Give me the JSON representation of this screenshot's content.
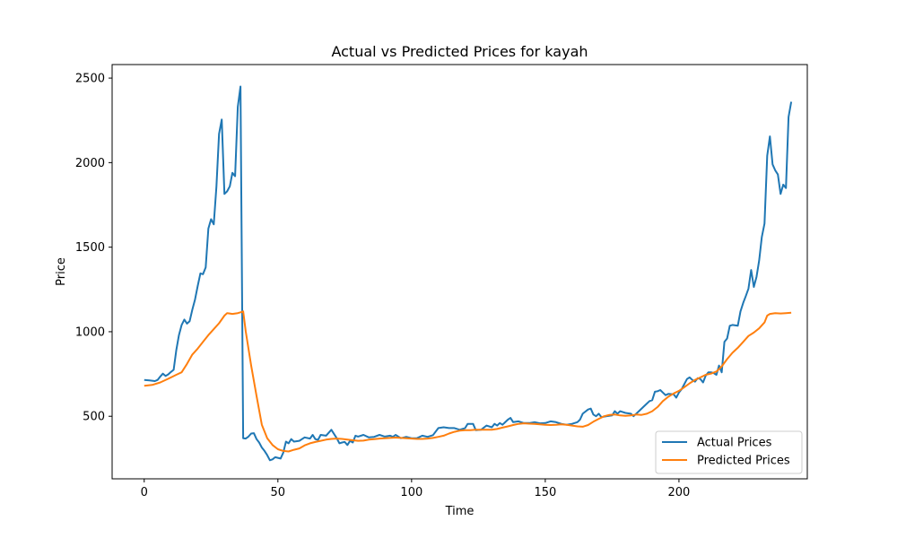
{
  "chart_data": {
    "type": "line",
    "title": "Actual vs Predicted Prices for kayah",
    "xlabel": "Time",
    "ylabel": "Price",
    "xlim": [
      -12,
      248
    ],
    "ylim": [
      130,
      2580
    ],
    "xticks": [
      0,
      50,
      100,
      150,
      200
    ],
    "yticks": [
      500,
      1000,
      1500,
      2000,
      2500
    ],
    "grid": false,
    "legend_position": "lower-right",
    "series": [
      {
        "name": "Actual Prices",
        "color": "#1f77b4",
        "points": [
          [
            0,
            715
          ],
          [
            2,
            712
          ],
          [
            4,
            708
          ],
          [
            5,
            715
          ],
          [
            6,
            735
          ],
          [
            7,
            752
          ],
          [
            8,
            738
          ],
          [
            9,
            748
          ],
          [
            10,
            762
          ],
          [
            11,
            775
          ],
          [
            12,
            890
          ],
          [
            13,
            980
          ],
          [
            14,
            1040
          ],
          [
            15,
            1072
          ],
          [
            16,
            1048
          ],
          [
            17,
            1062
          ],
          [
            18,
            1130
          ],
          [
            19,
            1190
          ],
          [
            20,
            1270
          ],
          [
            21,
            1345
          ],
          [
            22,
            1340
          ],
          [
            23,
            1380
          ],
          [
            24,
            1610
          ],
          [
            25,
            1665
          ],
          [
            26,
            1635
          ],
          [
            27,
            1860
          ],
          [
            28,
            2170
          ],
          [
            29,
            2255
          ],
          [
            30,
            1815
          ],
          [
            31,
            1830
          ],
          [
            32,
            1860
          ],
          [
            33,
            1940
          ],
          [
            34,
            1920
          ],
          [
            35,
            2330
          ],
          [
            36,
            2450
          ],
          [
            37,
            370
          ],
          [
            38,
            368
          ],
          [
            39,
            380
          ],
          [
            40,
            398
          ],
          [
            41,
            400
          ],
          [
            42,
            365
          ],
          [
            43,
            345
          ],
          [
            44,
            315
          ],
          [
            45,
            295
          ],
          [
            46,
            270
          ],
          [
            47,
            240
          ],
          [
            48,
            245
          ],
          [
            49,
            258
          ],
          [
            51,
            250
          ],
          [
            52,
            285
          ],
          [
            53,
            350
          ],
          [
            54,
            340
          ],
          [
            55,
            365
          ],
          [
            56,
            350
          ],
          [
            58,
            355
          ],
          [
            60,
            375
          ],
          [
            62,
            368
          ],
          [
            63,
            390
          ],
          [
            64,
            365
          ],
          [
            65,
            360
          ],
          [
            66,
            390
          ],
          [
            68,
            385
          ],
          [
            70,
            420
          ],
          [
            72,
            370
          ],
          [
            73,
            340
          ],
          [
            74,
            345
          ],
          [
            75,
            348
          ],
          [
            76,
            330
          ],
          [
            77,
            355
          ],
          [
            78,
            345
          ],
          [
            79,
            385
          ],
          [
            80,
            380
          ],
          [
            82,
            390
          ],
          [
            84,
            375
          ],
          [
            86,
            378
          ],
          [
            88,
            390
          ],
          [
            90,
            380
          ],
          [
            92,
            385
          ],
          [
            93,
            378
          ],
          [
            94,
            390
          ],
          [
            96,
            370
          ],
          [
            98,
            378
          ],
          [
            100,
            370
          ],
          [
            102,
            370
          ],
          [
            104,
            385
          ],
          [
            106,
            378
          ],
          [
            108,
            388
          ],
          [
            110,
            430
          ],
          [
            112,
            435
          ],
          [
            114,
            430
          ],
          [
            116,
            430
          ],
          [
            118,
            420
          ],
          [
            120,
            430
          ],
          [
            121,
            455
          ],
          [
            123,
            455
          ],
          [
            124,
            418
          ],
          [
            126,
            420
          ],
          [
            128,
            445
          ],
          [
            130,
            435
          ],
          [
            131,
            455
          ],
          [
            132,
            445
          ],
          [
            133,
            460
          ],
          [
            134,
            450
          ],
          [
            136,
            480
          ],
          [
            137,
            490
          ],
          [
            138,
            465
          ],
          [
            140,
            470
          ],
          [
            142,
            460
          ],
          [
            144,
            460
          ],
          [
            146,
            465
          ],
          [
            148,
            458
          ],
          [
            150,
            460
          ],
          [
            152,
            470
          ],
          [
            154,
            465
          ],
          [
            156,
            455
          ],
          [
            158,
            450
          ],
          [
            160,
            455
          ],
          [
            162,
            465
          ],
          [
            163,
            480
          ],
          [
            164,
            515
          ],
          [
            166,
            540
          ],
          [
            167,
            545
          ],
          [
            168,
            510
          ],
          [
            169,
            500
          ],
          [
            170,
            515
          ],
          [
            171,
            495
          ],
          [
            173,
            500
          ],
          [
            175,
            505
          ],
          [
            176,
            530
          ],
          [
            177,
            515
          ],
          [
            178,
            530
          ],
          [
            180,
            520
          ],
          [
            182,
            515
          ],
          [
            183,
            500
          ],
          [
            185,
            530
          ],
          [
            187,
            560
          ],
          [
            189,
            590
          ],
          [
            190,
            595
          ],
          [
            191,
            645
          ],
          [
            192,
            648
          ],
          [
            193,
            655
          ],
          [
            194,
            640
          ],
          [
            195,
            625
          ],
          [
            196,
            632
          ],
          [
            198,
            630
          ],
          [
            199,
            610
          ],
          [
            200,
            640
          ],
          [
            201,
            660
          ],
          [
            202,
            690
          ],
          [
            203,
            720
          ],
          [
            204,
            730
          ],
          [
            205,
            715
          ],
          [
            206,
            705
          ],
          [
            207,
            725
          ],
          [
            208,
            720
          ],
          [
            209,
            700
          ],
          [
            210,
            740
          ],
          [
            211,
            760
          ],
          [
            212,
            760
          ],
          [
            213,
            755
          ],
          [
            214,
            745
          ],
          [
            215,
            800
          ],
          [
            216,
            760
          ],
          [
            217,
            940
          ],
          [
            218,
            960
          ],
          [
            219,
            1035
          ],
          [
            220,
            1040
          ],
          [
            222,
            1035
          ],
          [
            223,
            1120
          ],
          [
            224,
            1170
          ],
          [
            225,
            1210
          ],
          [
            226,
            1255
          ],
          [
            227,
            1365
          ],
          [
            228,
            1265
          ],
          [
            229,
            1325
          ],
          [
            230,
            1420
          ],
          [
            231,
            1560
          ],
          [
            232,
            1640
          ],
          [
            233,
            2040
          ],
          [
            234,
            2155
          ],
          [
            235,
            1990
          ],
          [
            236,
            1955
          ],
          [
            237,
            1930
          ],
          [
            238,
            1815
          ],
          [
            239,
            1870
          ],
          [
            240,
            1850
          ],
          [
            241,
            2270
          ],
          [
            242,
            2360
          ]
        ]
      },
      {
        "name": "Predicted Prices",
        "color": "#ff7f0e",
        "points": [
          [
            0,
            680
          ],
          [
            3,
            685
          ],
          [
            6,
            700
          ],
          [
            9,
            722
          ],
          [
            12,
            745
          ],
          [
            14,
            760
          ],
          [
            16,
            810
          ],
          [
            18,
            865
          ],
          [
            20,
            900
          ],
          [
            22,
            940
          ],
          [
            24,
            980
          ],
          [
            26,
            1015
          ],
          [
            28,
            1050
          ],
          [
            30,
            1095
          ],
          [
            31,
            1110
          ],
          [
            33,
            1105
          ],
          [
            35,
            1110
          ],
          [
            36,
            1115
          ],
          [
            37,
            1120
          ],
          [
            38,
            1000
          ],
          [
            40,
            800
          ],
          [
            42,
            620
          ],
          [
            44,
            450
          ],
          [
            46,
            370
          ],
          [
            48,
            330
          ],
          [
            50,
            305
          ],
          [
            52,
            295
          ],
          [
            54,
            292
          ],
          [
            56,
            302
          ],
          [
            58,
            310
          ],
          [
            60,
            328
          ],
          [
            62,
            340
          ],
          [
            64,
            348
          ],
          [
            66,
            355
          ],
          [
            68,
            362
          ],
          [
            70,
            366
          ],
          [
            72,
            368
          ],
          [
            74,
            366
          ],
          [
            76,
            362
          ],
          [
            78,
            358
          ],
          [
            80,
            355
          ],
          [
            82,
            356
          ],
          [
            84,
            362
          ],
          [
            86,
            365
          ],
          [
            88,
            368
          ],
          [
            90,
            370
          ],
          [
            92,
            372
          ],
          [
            94,
            374
          ],
          [
            96,
            372
          ],
          [
            98,
            370
          ],
          [
            100,
            368
          ],
          [
            102,
            366
          ],
          [
            104,
            366
          ],
          [
            106,
            368
          ],
          [
            108,
            372
          ],
          [
            110,
            378
          ],
          [
            112,
            385
          ],
          [
            114,
            398
          ],
          [
            116,
            408
          ],
          [
            118,
            415
          ],
          [
            120,
            418
          ],
          [
            122,
            418
          ],
          [
            124,
            420
          ],
          [
            126,
            420
          ],
          [
            128,
            420
          ],
          [
            130,
            420
          ],
          [
            132,
            425
          ],
          [
            134,
            433
          ],
          [
            136,
            440
          ],
          [
            138,
            448
          ],
          [
            140,
            455
          ],
          [
            142,
            458
          ],
          [
            144,
            456
          ],
          [
            146,
            455
          ],
          [
            148,
            452
          ],
          [
            150,
            450
          ],
          [
            152,
            448
          ],
          [
            154,
            449
          ],
          [
            156,
            452
          ],
          [
            158,
            450
          ],
          [
            160,
            445
          ],
          [
            162,
            440
          ],
          [
            164,
            438
          ],
          [
            166,
            448
          ],
          [
            168,
            468
          ],
          [
            170,
            485
          ],
          [
            172,
            500
          ],
          [
            174,
            508
          ],
          [
            176,
            510
          ],
          [
            178,
            505
          ],
          [
            180,
            503
          ],
          [
            182,
            505
          ],
          [
            184,
            510
          ],
          [
            186,
            508
          ],
          [
            188,
            515
          ],
          [
            190,
            530
          ],
          [
            192,
            555
          ],
          [
            194,
            590
          ],
          [
            196,
            615
          ],
          [
            198,
            635
          ],
          [
            200,
            650
          ],
          [
            202,
            672
          ],
          [
            204,
            695
          ],
          [
            206,
            715
          ],
          [
            208,
            730
          ],
          [
            210,
            745
          ],
          [
            212,
            752
          ],
          [
            214,
            765
          ],
          [
            216,
            795
          ],
          [
            218,
            838
          ],
          [
            220,
            875
          ],
          [
            222,
            905
          ],
          [
            224,
            940
          ],
          [
            226,
            975
          ],
          [
            228,
            995
          ],
          [
            230,
            1020
          ],
          [
            232,
            1055
          ],
          [
            233,
            1095
          ],
          [
            234,
            1105
          ],
          [
            236,
            1110
          ],
          [
            238,
            1108
          ],
          [
            240,
            1110
          ],
          [
            242,
            1112
          ]
        ]
      }
    ]
  }
}
